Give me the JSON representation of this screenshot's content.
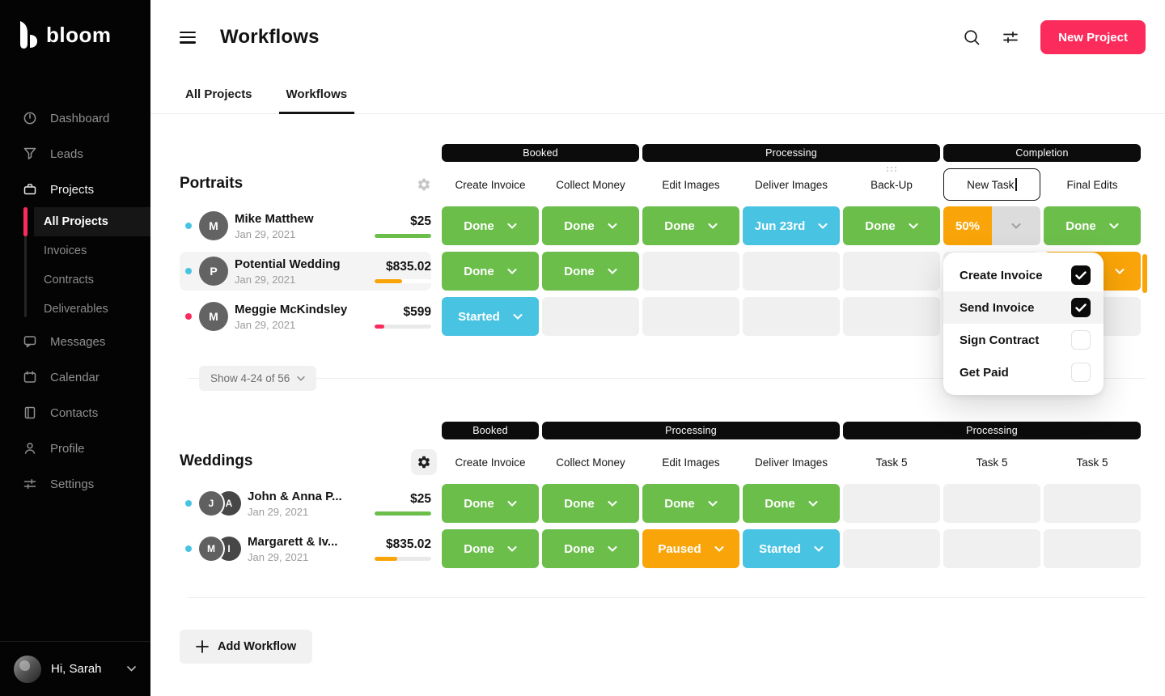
{
  "colors": {
    "accent_pink": "#fb2c5c",
    "green": "#6cbe4b",
    "blue": "#48c3e2",
    "orange": "#f9a408",
    "bar_black": "#0c0c0c"
  },
  "sidebar": {
    "logo_text": "bloom",
    "nav": [
      {
        "label": "Dashboard"
      },
      {
        "label": "Leads"
      },
      {
        "label": "Projects"
      }
    ],
    "projects_sub": [
      {
        "label": "All Projects",
        "active": true
      },
      {
        "label": "Invoices"
      },
      {
        "label": "Contracts"
      },
      {
        "label": "Deliverables"
      }
    ],
    "nav_bottom": [
      {
        "label": "Messages"
      },
      {
        "label": "Calendar"
      },
      {
        "label": "Contacts"
      },
      {
        "label": "Profile"
      },
      {
        "label": "Settings"
      }
    ],
    "user_greeting": "Hi, Sarah"
  },
  "header": {
    "title": "Workflows",
    "new_project_label": "New Project"
  },
  "tabs": [
    {
      "label": "All Projects",
      "active": false
    },
    {
      "label": "Workflows",
      "active": true
    }
  ],
  "portraits": {
    "title": "Portraits",
    "groups": [
      {
        "label": "Booked",
        "span": 2
      },
      {
        "label": "Processing",
        "span": 3
      },
      {
        "label": "Completion",
        "span": 2
      }
    ],
    "columns": [
      "Create Invoice",
      "Collect Money",
      "Edit Images",
      "Deliver Images",
      "Back-Up",
      "New Task",
      "Final Edits"
    ],
    "new_task_value": "New Task",
    "rows": [
      {
        "name": "Mike Matthew",
        "date": "Jan 29, 2021",
        "price": "$25",
        "dot": "blue",
        "initials": "M",
        "progress": 100,
        "progress_color": "green",
        "cells": [
          {
            "label": "Done",
            "status": "done"
          },
          {
            "label": "Done",
            "status": "done"
          },
          {
            "label": "Done",
            "status": "done"
          },
          {
            "label": "Jun 23rd",
            "status": "date"
          },
          {
            "label": "Done",
            "status": "done"
          },
          {
            "label": "50%",
            "status": "progress",
            "percent": 50
          },
          {
            "label": "Done",
            "status": "done"
          }
        ]
      },
      {
        "name": "Potential Wedding",
        "date": "Jan 29, 2021",
        "price": "$835.02",
        "dot": "blue",
        "initials": "P",
        "progress": 48,
        "progress_color": "orange",
        "cells": [
          {
            "label": "Done",
            "status": "done"
          },
          {
            "label": "Done",
            "status": "done"
          },
          {
            "status": "empty"
          },
          {
            "status": "empty"
          },
          {
            "status": "empty"
          },
          {
            "status": "empty"
          },
          {
            "label": "",
            "status": "orange"
          }
        ]
      },
      {
        "name": "Meggie McKindsley",
        "date": "Jan 29, 2021",
        "price": "$599",
        "dot": "pink",
        "initials": "M",
        "progress": 17,
        "progress_color": "pink",
        "cells": [
          {
            "label": "Started",
            "status": "started"
          },
          {
            "status": "empty"
          },
          {
            "status": "empty"
          },
          {
            "status": "empty"
          },
          {
            "status": "empty"
          },
          {
            "status": "empty"
          },
          {
            "status": "empty"
          }
        ]
      }
    ],
    "pagination_label": "Show 4-24 of 56"
  },
  "task_popup": {
    "items": [
      {
        "label": "Create Invoice",
        "checked": true
      },
      {
        "label": "Send Invoice",
        "checked": true,
        "highlighted": true
      },
      {
        "label": "Sign Contract",
        "checked": false
      },
      {
        "label": "Get Paid",
        "checked": false
      }
    ]
  },
  "weddings": {
    "title": "Weddings",
    "groups": [
      {
        "label": "Booked",
        "span": 1
      },
      {
        "label": "Processing",
        "span": 3
      },
      {
        "label": "Processing",
        "span": 3
      }
    ],
    "columns": [
      "Create Invoice",
      "Collect Money",
      "Edit Images",
      "Deliver Images",
      "Task 5",
      "Task 5",
      "Task 5"
    ],
    "rows": [
      {
        "name": "John & Anna P...",
        "date": "Jan 29, 2021",
        "price": "$25",
        "dot": "blue",
        "initials": [
          "J",
          "A"
        ],
        "progress": 100,
        "progress_color": "green",
        "cells": [
          {
            "label": "Done",
            "status": "done"
          },
          {
            "label": "Done",
            "status": "done"
          },
          {
            "label": "Done",
            "status": "done"
          },
          {
            "label": "Done",
            "status": "done"
          },
          {
            "status": "empty"
          },
          {
            "status": "empty"
          },
          {
            "status": "empty"
          }
        ]
      },
      {
        "name": "Margarett & Iv...",
        "date": "Jan 29, 2021",
        "price": "$835.02",
        "dot": "blue",
        "initials": [
          "M",
          "I"
        ],
        "progress": 40,
        "progress_color": "orange",
        "cells": [
          {
            "label": "Done",
            "status": "done"
          },
          {
            "label": "Done",
            "status": "done"
          },
          {
            "label": "Paused",
            "status": "paused"
          },
          {
            "label": "Started",
            "status": "started"
          },
          {
            "status": "empty"
          },
          {
            "status": "empty"
          },
          {
            "status": "empty"
          }
        ]
      }
    ]
  },
  "footer": {
    "add_workflow_label": "Add Workflow"
  }
}
